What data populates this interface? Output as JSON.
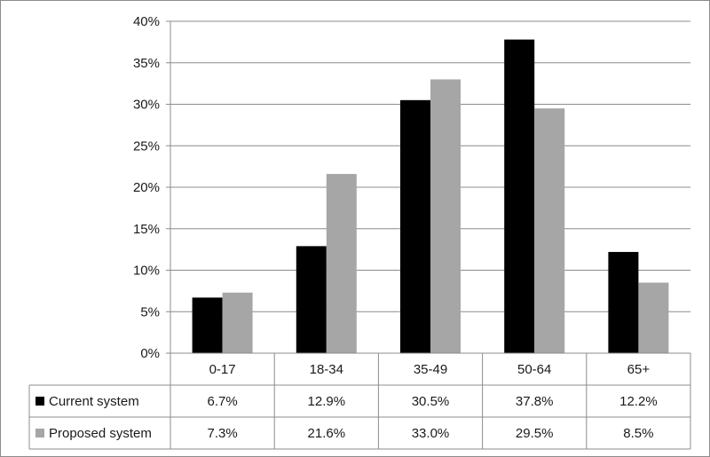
{
  "chart_data": {
    "type": "bar",
    "categories": [
      "0-17",
      "18-34",
      "35-49",
      "50-64",
      "65+"
    ],
    "series": [
      {
        "name": "Current system",
        "values": [
          6.7,
          12.9,
          30.5,
          37.8,
          12.2
        ],
        "labels": [
          "6.7%",
          "12.9%",
          "30.5%",
          "37.8%",
          "12.2%"
        ],
        "color": "#000000"
      },
      {
        "name": "Proposed system",
        "values": [
          7.3,
          21.6,
          33.0,
          29.5,
          8.5
        ],
        "labels": [
          "7.3%",
          "21.6%",
          "33.0%",
          "29.5%",
          "8.5%"
        ],
        "color": "#a6a6a6"
      }
    ],
    "ylim": [
      0,
      40
    ],
    "yticks": [
      "0%",
      "5%",
      "10%",
      "15%",
      "20%",
      "25%",
      "30%",
      "35%",
      "40%"
    ],
    "grid": true,
    "legend": "data table below chart"
  }
}
